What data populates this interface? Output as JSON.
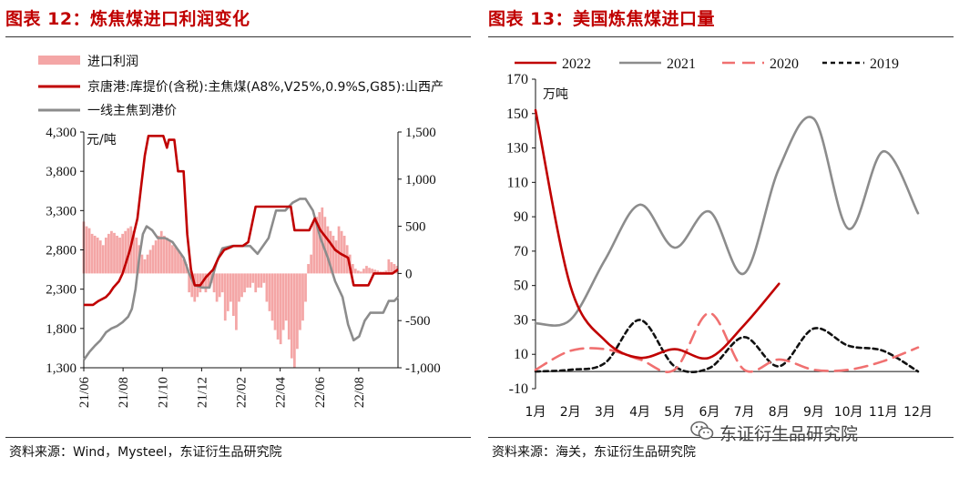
{
  "left": {
    "title": "图表 12：炼焦煤进口利润变化",
    "source": "资料来源：Wind，Mysteel，东证衍生品研究院",
    "chart_data": {
      "type": "bar+line",
      "unit_label": "元/吨",
      "legend": [
        {
          "name": "进口利润",
          "kind": "bar",
          "color": "#f4a6a6"
        },
        {
          "name": "京唐港:库提价(含税):主焦煤(A8%,V25%,0.9%S,G85):山西产",
          "kind": "line",
          "color": "#c00000"
        },
        {
          "name": "一线主焦到港价",
          "kind": "line",
          "color": "#8c8c8c"
        }
      ],
      "x_ticks": [
        "21/06",
        "21/08",
        "21/10",
        "21/12",
        "22/02",
        "22/04",
        "22/06",
        "22/08"
      ],
      "y_left": {
        "min": 1300,
        "max": 4300,
        "ticks": [
          "1,300",
          "1,800",
          "2,300",
          "2,800",
          "3,300",
          "3,800",
          "4,300"
        ]
      },
      "y_right": {
        "min": -1000,
        "max": 1500,
        "ticks": [
          "-1,000",
          "-500",
          "0",
          "500",
          "1,000",
          "1,500"
        ]
      },
      "x_range": [
        0,
        17
      ],
      "series_red": [
        [
          0,
          2100
        ],
        [
          0.5,
          2100
        ],
        [
          0.8,
          2150
        ],
        [
          1.2,
          2200
        ],
        [
          1.4,
          2250
        ],
        [
          1.6,
          2320
        ],
        [
          1.9,
          2400
        ],
        [
          2.1,
          2500
        ],
        [
          2.3,
          2650
        ],
        [
          2.5,
          2800
        ],
        [
          2.7,
          3000
        ],
        [
          2.9,
          3200
        ],
        [
          3.1,
          3600
        ],
        [
          3.3,
          4000
        ],
        [
          3.5,
          4250
        ],
        [
          4.0,
          4250
        ],
        [
          4.3,
          4250
        ],
        [
          4.5,
          4100
        ],
        [
          4.6,
          4200
        ],
        [
          4.9,
          4200
        ],
        [
          5.1,
          3800
        ],
        [
          5.4,
          3800
        ],
        [
          5.6,
          3000
        ],
        [
          5.8,
          2550
        ],
        [
          6.0,
          2350
        ],
        [
          6.3,
          2350
        ],
        [
          6.6,
          2450
        ],
        [
          7.0,
          2550
        ],
        [
          7.3,
          2700
        ],
        [
          7.6,
          2800
        ],
        [
          8.1,
          2850
        ],
        [
          8.6,
          2850
        ],
        [
          8.9,
          2900
        ],
        [
          9.3,
          3350
        ],
        [
          10.2,
          3350
        ],
        [
          11.2,
          3350
        ],
        [
          11.4,
          3050
        ],
        [
          12.2,
          3050
        ],
        [
          12.5,
          3200
        ],
        [
          12.8,
          3050
        ],
        [
          13.3,
          2900
        ],
        [
          13.6,
          2800
        ],
        [
          13.9,
          2750
        ],
        [
          14.3,
          2700
        ],
        [
          14.6,
          2350
        ],
        [
          15.4,
          2350
        ],
        [
          15.7,
          2500
        ],
        [
          16.7,
          2500
        ],
        [
          17.0,
          2550
        ]
      ],
      "series_grey": [
        [
          0,
          1400
        ],
        [
          0.3,
          1500
        ],
        [
          0.6,
          1580
        ],
        [
          0.9,
          1650
        ],
        [
          1.2,
          1750
        ],
        [
          1.5,
          1800
        ],
        [
          1.8,
          1830
        ],
        [
          2.1,
          1880
        ],
        [
          2.4,
          1950
        ],
        [
          2.6,
          2050
        ],
        [
          2.8,
          2300
        ],
        [
          3.0,
          2700
        ],
        [
          3.2,
          3000
        ],
        [
          3.4,
          3100
        ],
        [
          3.7,
          3050
        ],
        [
          4.0,
          2950
        ],
        [
          4.4,
          2950
        ],
        [
          4.8,
          2900
        ],
        [
          5.1,
          2800
        ],
        [
          5.4,
          2700
        ],
        [
          5.7,
          2500
        ],
        [
          6.0,
          2350
        ],
        [
          6.4,
          2320
        ],
        [
          6.8,
          2320
        ],
        [
          7.2,
          2650
        ],
        [
          7.5,
          2820
        ],
        [
          8.0,
          2850
        ],
        [
          8.5,
          2850
        ],
        [
          9.0,
          2850
        ],
        [
          9.4,
          2750
        ],
        [
          10.0,
          2950
        ],
        [
          10.4,
          3300
        ],
        [
          10.9,
          3300
        ],
        [
          11.3,
          3400
        ],
        [
          11.7,
          3450
        ],
        [
          12.0,
          3450
        ],
        [
          12.4,
          3300
        ],
        [
          12.8,
          2950
        ],
        [
          13.2,
          2700
        ],
        [
          13.6,
          2400
        ],
        [
          14.0,
          2200
        ],
        [
          14.3,
          1850
        ],
        [
          14.6,
          1650
        ],
        [
          14.9,
          1700
        ],
        [
          15.2,
          1900
        ],
        [
          15.5,
          2000
        ],
        [
          15.8,
          2000
        ],
        [
          16.2,
          2000
        ],
        [
          16.5,
          2150
        ],
        [
          16.8,
          2150
        ],
        [
          17.0,
          2200
        ]
      ],
      "bars_profit": [
        [
          0.0,
          550
        ],
        [
          0.15,
          500
        ],
        [
          0.3,
          480
        ],
        [
          0.45,
          420
        ],
        [
          0.6,
          400
        ],
        [
          0.75,
          380
        ],
        [
          0.9,
          350
        ],
        [
          1.05,
          300
        ],
        [
          1.2,
          380
        ],
        [
          1.35,
          420
        ],
        [
          1.5,
          450
        ],
        [
          1.65,
          430
        ],
        [
          1.8,
          400
        ],
        [
          1.95,
          380
        ],
        [
          2.1,
          420
        ],
        [
          2.25,
          450
        ],
        [
          2.4,
          480
        ],
        [
          2.55,
          500
        ],
        [
          2.7,
          450
        ],
        [
          2.85,
          380
        ],
        [
          3.0,
          300
        ],
        [
          3.15,
          200
        ],
        [
          3.3,
          150
        ],
        [
          3.45,
          200
        ],
        [
          3.6,
          250
        ],
        [
          3.75,
          300
        ],
        [
          3.9,
          350
        ],
        [
          4.05,
          400
        ],
        [
          4.2,
          450
        ],
        [
          4.35,
          400
        ],
        [
          4.5,
          380
        ],
        [
          4.65,
          350
        ],
        [
          4.8,
          300
        ],
        [
          4.95,
          280
        ],
        [
          5.1,
          250
        ],
        [
          5.25,
          200
        ],
        [
          5.4,
          150
        ],
        [
          5.55,
          100
        ],
        [
          5.7,
          -200
        ],
        [
          5.85,
          -250
        ],
        [
          6.0,
          -300
        ],
        [
          6.15,
          -250
        ],
        [
          6.3,
          -200
        ],
        [
          6.45,
          -150
        ],
        [
          6.6,
          -200
        ],
        [
          6.75,
          -150
        ],
        [
          6.9,
          -100
        ],
        [
          7.05,
          -200
        ],
        [
          7.2,
          -300
        ],
        [
          7.35,
          -250
        ],
        [
          7.5,
          -200
        ],
        [
          7.65,
          -500
        ],
        [
          7.8,
          -400
        ],
        [
          7.95,
          -300
        ],
        [
          8.1,
          -450
        ],
        [
          8.25,
          -600
        ],
        [
          8.4,
          -300
        ],
        [
          8.55,
          -250
        ],
        [
          8.7,
          -200
        ],
        [
          8.85,
          -150
        ],
        [
          9.0,
          -150
        ],
        [
          9.15,
          -100
        ],
        [
          9.3,
          -200
        ],
        [
          9.45,
          -150
        ],
        [
          9.6,
          -150
        ],
        [
          9.75,
          -100
        ],
        [
          9.9,
          -300
        ],
        [
          10.05,
          -400
        ],
        [
          10.2,
          -500
        ],
        [
          10.35,
          -600
        ],
        [
          10.5,
          -700
        ],
        [
          10.65,
          -750
        ],
        [
          10.8,
          -600
        ],
        [
          10.95,
          -500
        ],
        [
          11.1,
          -700
        ],
        [
          11.25,
          -900
        ],
        [
          11.4,
          -1000
        ],
        [
          11.55,
          -800
        ],
        [
          11.7,
          -600
        ],
        [
          11.85,
          -500
        ],
        [
          12.0,
          -300
        ],
        [
          12.15,
          100
        ],
        [
          12.3,
          200
        ],
        [
          12.45,
          550
        ],
        [
          12.6,
          600
        ],
        [
          12.75,
          650
        ],
        [
          12.9,
          700
        ],
        [
          13.05,
          600
        ],
        [
          13.2,
          500
        ],
        [
          13.35,
          450
        ],
        [
          13.5,
          400
        ],
        [
          13.65,
          350
        ],
        [
          13.8,
          500
        ],
        [
          13.95,
          450
        ],
        [
          14.1,
          400
        ],
        [
          14.25,
          300
        ],
        [
          14.4,
          200
        ],
        [
          14.55,
          100
        ],
        [
          14.7,
          50
        ],
        [
          14.85,
          30
        ],
        [
          15.0,
          20
        ],
        [
          15.15,
          50
        ],
        [
          15.3,
          80
        ],
        [
          15.45,
          60
        ],
        [
          15.6,
          50
        ],
        [
          15.75,
          40
        ],
        [
          15.9,
          30
        ],
        [
          16.05,
          20
        ],
        [
          16.2,
          20
        ],
        [
          16.35,
          30
        ],
        [
          16.5,
          150
        ],
        [
          16.65,
          120
        ],
        [
          16.8,
          100
        ],
        [
          16.95,
          80
        ]
      ]
    }
  },
  "right": {
    "title": "图表 13：美国炼焦煤进口量",
    "source": "资料来源：海关，东证衍生品研究院",
    "watermark": "东证衍生品研究院",
    "chart_data": {
      "type": "line",
      "unit_label": "万吨",
      "categories": [
        "1月",
        "2月",
        "3月",
        "4月",
        "5月",
        "6月",
        "7月",
        "8月",
        "9月",
        "10月",
        "11月",
        "12月"
      ],
      "ylim": [
        -10,
        170
      ],
      "y_ticks": [
        -10,
        10,
        30,
        50,
        70,
        90,
        110,
        130,
        150,
        170
      ],
      "series": [
        {
          "name": "2022",
          "color": "#c00000",
          "dash": "solid",
          "values": [
            152,
            50,
            18,
            8,
            13,
            8,
            27,
            51,
            null,
            null,
            null,
            null
          ]
        },
        {
          "name": "2021",
          "color": "#8c8c8c",
          "dash": "solid",
          "values": [
            28,
            30,
            65,
            97,
            72,
            93,
            57,
            118,
            147,
            83,
            128,
            92
          ]
        },
        {
          "name": "2020",
          "color": "#f07070",
          "dash": "dashed",
          "values": [
            1,
            12,
            13,
            7,
            1,
            34,
            1,
            7,
            1,
            1,
            6,
            14
          ]
        },
        {
          "name": "2019",
          "color": "#111111",
          "dash": "dotted",
          "values": [
            0,
            1,
            5,
            30,
            3,
            2,
            20,
            3,
            25,
            15,
            12,
            0
          ]
        }
      ]
    }
  }
}
